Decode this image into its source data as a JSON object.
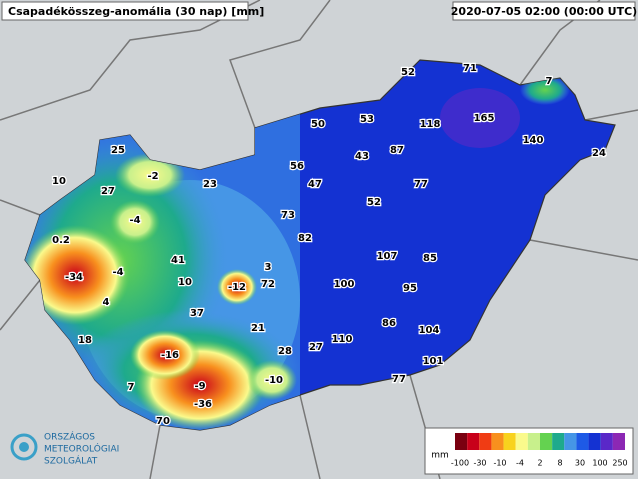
{
  "header": {
    "title": "Csapadékösszeg-anomália (30 nap) [mm]",
    "timestamp": "2020-07-05 02:00 (00:00 UTC)"
  },
  "stations": [
    52,
    71,
    7,
    50,
    53,
    118,
    165,
    140,
    24,
    25,
    43,
    87,
    56,
    47,
    77,
    10,
    27,
    -2,
    23,
    52,
    73,
    -4,
    0.2,
    82,
    107,
    85,
    -34,
    -4,
    41,
    3,
    10,
    -12,
    72,
    100,
    95,
    4,
    37,
    21,
    86,
    104,
    18,
    110,
    28,
    27,
    -16,
    101,
    7,
    -9,
    -10,
    77,
    70,
    -36
  ],
  "legend": {
    "unit": "mm",
    "labels": [
      "-100",
      "-30",
      "-10",
      "-4",
      "2",
      "8",
      "30",
      "100",
      "250"
    ],
    "colors": [
      "#7a0010",
      "#c8001a",
      "#f03c14",
      "#f8901e",
      "#f8d21e",
      "#fafa8c",
      "#c8f08c",
      "#64d250",
      "#1eaa8c",
      "#4696e6",
      "#1e5ae6",
      "#1432d2",
      "#5a28c8",
      "#8c28b4"
    ]
  },
  "logo": {
    "line1": "ORSZÁGOS",
    "line2": "METEOROLÓGIAI",
    "line3": "SZOLGÁLAT"
  }
}
